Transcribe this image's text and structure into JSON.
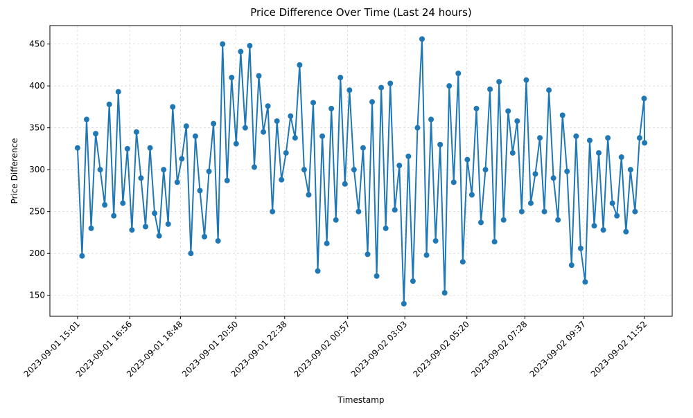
{
  "chart_data": {
    "type": "line",
    "title": "Price Difference Over Time (Last 24 hours)",
    "xlabel": "Timestamp",
    "ylabel": "Price Difference",
    "color": "#1f77b4",
    "grid": true,
    "x": [
      "2023-09-01 15:01",
      "2023-09-01 15:11",
      "2023-09-01 15:21",
      "2023-09-01 15:31",
      "2023-09-01 15:41",
      "2023-09-01 15:51",
      "2023-09-01 16:01",
      "2023-09-01 16:11",
      "2023-09-01 16:21",
      "2023-09-01 16:31",
      "2023-09-01 16:41",
      "2023-09-01 16:51",
      "2023-09-01 17:01",
      "2023-09-01 17:11",
      "2023-09-01 17:21",
      "2023-09-01 17:31",
      "2023-09-01 17:41",
      "2023-09-01 17:51",
      "2023-09-01 18:01",
      "2023-09-01 18:11",
      "2023-09-01 18:21",
      "2023-09-01 18:31",
      "2023-09-01 18:41",
      "2023-09-01 18:51",
      "2023-09-01 19:01",
      "2023-09-01 19:11",
      "2023-09-01 19:21",
      "2023-09-01 19:31",
      "2023-09-01 19:41",
      "2023-09-01 19:51",
      "2023-09-01 20:01",
      "2023-09-01 20:11",
      "2023-09-01 20:21",
      "2023-09-01 20:31",
      "2023-09-01 20:41",
      "2023-09-01 20:51",
      "2023-09-01 21:01",
      "2023-09-01 21:11",
      "2023-09-01 21:21",
      "2023-09-01 21:31",
      "2023-09-01 21:41",
      "2023-09-01 21:51",
      "2023-09-01 22:01",
      "2023-09-01 22:11",
      "2023-09-01 22:21",
      "2023-09-01 22:31",
      "2023-09-01 22:41",
      "2023-09-01 22:51",
      "2023-09-01 23:01",
      "2023-09-01 23:11",
      "2023-09-01 23:21",
      "2023-09-01 23:31",
      "2023-09-01 23:41",
      "2023-09-01 23:51",
      "2023-09-02 00:01",
      "2023-09-02 00:11",
      "2023-09-02 00:21",
      "2023-09-02 00:31",
      "2023-09-02 00:41",
      "2023-09-02 00:51",
      "2023-09-02 01:01",
      "2023-09-02 01:11",
      "2023-09-02 01:21",
      "2023-09-02 01:31",
      "2023-09-02 01:41",
      "2023-09-02 01:51",
      "2023-09-02 02:01",
      "2023-09-02 02:11",
      "2023-09-02 02:21",
      "2023-09-02 02:31",
      "2023-09-02 02:41",
      "2023-09-02 02:51",
      "2023-09-02 03:01",
      "2023-09-02 03:11",
      "2023-09-02 03:21",
      "2023-09-02 03:31",
      "2023-09-02 03:41",
      "2023-09-02 03:51",
      "2023-09-02 04:01",
      "2023-09-02 04:11",
      "2023-09-02 04:21",
      "2023-09-02 04:31",
      "2023-09-02 04:41",
      "2023-09-02 04:51",
      "2023-09-02 05:01",
      "2023-09-02 05:11",
      "2023-09-02 05:21",
      "2023-09-02 05:31",
      "2023-09-02 05:41",
      "2023-09-02 05:51",
      "2023-09-02 06:01",
      "2023-09-02 06:11",
      "2023-09-02 06:21",
      "2023-09-02 06:31",
      "2023-09-02 06:41",
      "2023-09-02 06:51",
      "2023-09-02 07:01",
      "2023-09-02 07:11",
      "2023-09-02 07:21",
      "2023-09-02 07:31",
      "2023-09-02 07:41",
      "2023-09-02 07:51",
      "2023-09-02 08:01",
      "2023-09-02 08:11",
      "2023-09-02 08:21",
      "2023-09-02 08:31",
      "2023-09-02 08:41",
      "2023-09-02 08:51",
      "2023-09-02 09:01",
      "2023-09-02 09:11",
      "2023-09-02 09:21",
      "2023-09-02 09:31",
      "2023-09-02 09:41",
      "2023-09-02 09:51",
      "2023-09-02 10:01",
      "2023-09-02 10:11",
      "2023-09-02 10:21",
      "2023-09-02 10:31",
      "2023-09-02 10:41",
      "2023-09-02 10:51",
      "2023-09-02 11:01",
      "2023-09-02 11:11",
      "2023-09-02 11:21",
      "2023-09-02 11:31",
      "2023-09-02 11:41",
      "2023-09-02 11:51",
      "2023-09-02 11:52"
    ],
    "values": [
      326,
      197,
      360,
      230,
      343,
      300,
      258,
      378,
      245,
      393,
      260,
      325,
      228,
      345,
      290,
      232,
      326,
      248,
      221,
      300,
      235,
      375,
      285,
      313,
      352,
      200,
      340,
      275,
      220,
      298,
      355,
      215,
      450,
      287,
      410,
      331,
      441,
      350,
      448,
      303,
      412,
      345,
      376,
      250,
      358,
      288,
      320,
      364,
      338,
      425,
      300,
      270,
      380,
      179,
      340,
      212,
      373,
      240,
      410,
      283,
      395,
      300,
      250,
      326,
      199,
      381,
      173,
      398,
      230,
      403,
      252,
      305,
      140,
      316,
      167,
      350,
      456,
      198,
      360,
      215,
      330,
      153,
      400,
      285,
      415,
      190,
      312,
      270,
      373,
      237,
      300,
      396,
      214,
      405,
      240,
      370,
      320,
      358,
      250,
      407,
      260,
      295,
      338,
      250,
      395,
      290,
      240,
      365,
      298,
      186,
      340,
      206,
      166,
      335,
      233,
      320,
      228,
      338,
      260,
      245,
      315,
      226,
      300,
      250,
      338,
      385,
      332
    ],
    "xlim": [
      "2023-09-01 14:00",
      "2023-09-02 12:53"
    ],
    "xticks": [
      "2023-09-01 15:01",
      "2023-09-01 16:56",
      "2023-09-01 18:48",
      "2023-09-01 20:50",
      "2023-09-01 22:38",
      "2023-09-02 00:57",
      "2023-09-02 03:03",
      "2023-09-02 05:20",
      "2023-09-02 07:28",
      "2023-09-02 09:37",
      "2023-09-02 11:52"
    ],
    "ylim": [
      125,
      472
    ],
    "yticks": [
      150,
      200,
      250,
      300,
      350,
      400,
      450
    ]
  }
}
